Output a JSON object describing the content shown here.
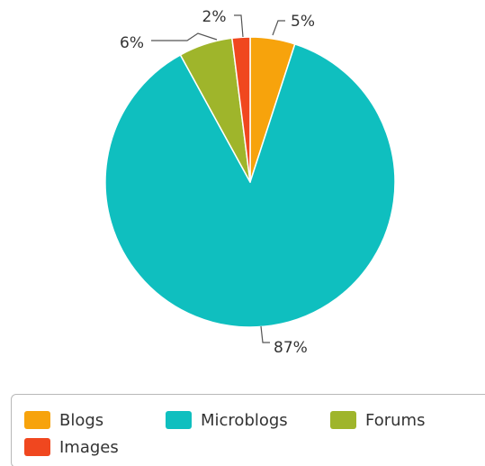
{
  "chart_data": {
    "type": "pie",
    "categories": [
      "Blogs",
      "Microblogs",
      "Forums",
      "Images"
    ],
    "values": [
      5,
      87,
      6,
      2
    ],
    "data_labels": [
      "5%",
      "87%",
      "6%",
      "2%"
    ],
    "colors": [
      "#f7a30c",
      "#0fbfbf",
      "#9fb52b",
      "#f0471f"
    ],
    "slice_order": [
      "Blogs",
      "Microblogs",
      "Forums",
      "Images"
    ],
    "start_angle_deg": 0,
    "direction": "clockwise",
    "legend": {
      "position": "bottom",
      "items": [
        "Blogs",
        "Microblogs",
        "Forums",
        "Images"
      ]
    }
  }
}
